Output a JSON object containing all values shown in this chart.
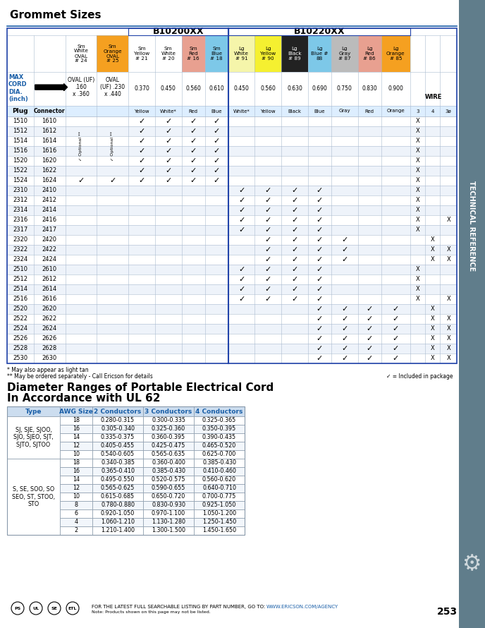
{
  "page_title": "Grommet Sizes",
  "b10200xx_label": "B10200XX",
  "b10220xx_label": "B10220XX",
  "col_header_texts": [
    "Sm\nWhite\nOVAL\n# 24",
    "Sm\nOrange\nOVAL\n# 25",
    "Sm\nYellow\n# 21",
    "Sm\nWhite\n# 20",
    "Sm\nRed\n# 16",
    "Sm\nBlue\n# 18",
    "Lg\nWhite\n# 91",
    "Lg\nYellow\n# 90",
    "Lg\nBlack\n# 89",
    "Lg\nBlue #\n88",
    "Lg\nGray\n# 87",
    "Lg\nRed\n# 86",
    "Lg\nOrange\n# 85"
  ],
  "col_header_colors": [
    "#ffffff",
    "#f5a020",
    "#ffffff",
    "#ffffff",
    "#e8a090",
    "#7dc8e8",
    "#f5f5aa",
    "#f5f030",
    "#222222",
    "#7dc8e8",
    "#bbbbbb",
    "#e8a090",
    "#f5a020"
  ],
  "col_header_fc": [
    "black",
    "black",
    "black",
    "black",
    "black",
    "black",
    "black",
    "black",
    "white",
    "black",
    "black",
    "black",
    "black"
  ],
  "sublabels": [
    "Yellow",
    "White*",
    "Red",
    "Blue",
    "White*",
    "Yellow",
    "Black",
    "Blue",
    "Gray",
    "Red",
    "Orange",
    "3",
    "4",
    "3ø"
  ],
  "plug_connector_pairs": [
    [
      "1510",
      "1610"
    ],
    [
      "1512",
      "1612"
    ],
    [
      "1514",
      "1614"
    ],
    [
      "1516",
      "1616"
    ],
    [
      "1520",
      "1620"
    ],
    [
      "1522",
      "1622"
    ],
    [
      "1524",
      "1624"
    ],
    [
      "2310",
      "2410"
    ],
    [
      "2312",
      "2412"
    ],
    [
      "2314",
      "2414"
    ],
    [
      "2316",
      "2416"
    ],
    [
      "2317",
      "2417"
    ],
    [
      "2320",
      "2420"
    ],
    [
      "2322",
      "2422"
    ],
    [
      "2324",
      "2424"
    ],
    [
      "2510",
      "2610"
    ],
    [
      "2512",
      "2612"
    ],
    [
      "2514",
      "2614"
    ],
    [
      "2516",
      "2616"
    ],
    [
      "2520",
      "2620"
    ],
    [
      "2522",
      "2622"
    ],
    [
      "2524",
      "2624"
    ],
    [
      "2526",
      "2626"
    ],
    [
      "2528",
      "2628"
    ],
    [
      "2530",
      "2630"
    ]
  ],
  "checks": {
    "1510": {
      "grommet": [
        2,
        3,
        4,
        5
      ],
      "wire": [
        13
      ]
    },
    "1512": {
      "grommet": [
        2,
        3,
        4,
        5
      ],
      "wire": [
        13
      ]
    },
    "1514": {
      "grommet": [
        2,
        3,
        4,
        5
      ],
      "wire": [
        13
      ]
    },
    "1516": {
      "grommet": [
        2,
        3,
        4,
        5
      ],
      "wire": [
        13
      ]
    },
    "1520": {
      "grommet": [
        2,
        3,
        4,
        5
      ],
      "wire": [
        13
      ]
    },
    "1522": {
      "grommet": [
        2,
        3,
        4,
        5
      ],
      "wire": [
        13
      ]
    },
    "1524": {
      "grommet": [
        0,
        1,
        2,
        3,
        4,
        5
      ],
      "wire": [
        13
      ]
    },
    "2310": {
      "grommet": [
        6,
        7,
        8,
        9
      ],
      "wire": [
        13
      ]
    },
    "2312": {
      "grommet": [
        6,
        7,
        8,
        9
      ],
      "wire": [
        13
      ]
    },
    "2314": {
      "grommet": [
        6,
        7,
        8,
        9
      ],
      "wire": [
        13
      ]
    },
    "2316": {
      "grommet": [
        6,
        7,
        8,
        9
      ],
      "wire": [
        13,
        15
      ]
    },
    "2317": {
      "grommet": [
        6,
        7,
        8,
        9
      ],
      "wire": [
        13
      ]
    },
    "2320": {
      "grommet": [
        7,
        8,
        9,
        10
      ],
      "wire": [
        14
      ]
    },
    "2322": {
      "grommet": [
        7,
        8,
        9,
        10
      ],
      "wire": [
        14,
        15
      ]
    },
    "2324": {
      "grommet": [
        7,
        8,
        9,
        10
      ],
      "wire": [
        14,
        15
      ]
    },
    "2510": {
      "grommet": [
        6,
        7,
        8,
        9
      ],
      "wire": [
        13
      ]
    },
    "2512": {
      "grommet": [
        6,
        7,
        8,
        9
      ],
      "wire": [
        13
      ]
    },
    "2514": {
      "grommet": [
        6,
        7,
        8,
        9
      ],
      "wire": [
        13
      ]
    },
    "2516": {
      "grommet": [
        6,
        7,
        8,
        9
      ],
      "wire": [
        13,
        15
      ]
    },
    "2520": {
      "grommet": [
        9,
        10,
        11,
        12
      ],
      "wire": [
        14
      ]
    },
    "2522": {
      "grommet": [
        9,
        10,
        11,
        12
      ],
      "wire": [
        14,
        15
      ]
    },
    "2524": {
      "grommet": [
        9,
        10,
        11,
        12
      ],
      "wire": [
        14,
        15
      ]
    },
    "2526": {
      "grommet": [
        9,
        10,
        11,
        12
      ],
      "wire": [
        14,
        15
      ]
    },
    "2528": {
      "grommet": [
        9,
        10,
        11,
        12
      ],
      "wire": [
        14,
        15
      ]
    },
    "2530": {
      "grommet": [
        9,
        10,
        11,
        12
      ],
      "wire": [
        14,
        15
      ]
    }
  },
  "blue_color": "#1a5fa8",
  "side_bar_color": "#607d8b",
  "footnote1": "* May also appear as light tan",
  "footnote2": "** May be ordered separately - Call Ericson for details",
  "footnote3": "✓ = Included in package",
  "page_num": "253",
  "table2_type1": "SJ, SJE, SJOO,\nSJO, SJEO, SJT,\nSJTO, SJTOO",
  "table2_type2": "S, SE, SOO, SO\nSEO, ST, STOO,\nSTO",
  "table2_awg1": [
    18,
    16,
    14,
    12,
    10
  ],
  "table2_awg2": [
    18,
    16,
    14,
    12,
    10,
    8,
    6,
    4,
    2
  ],
  "table2_2cond1": [
    "0.280-0.315",
    "0.305-0.340",
    "0.335-0.375",
    "0.405-0.455",
    "0.540-0.605"
  ],
  "table2_3cond1": [
    "0.300-0.335",
    "0.325-0.360",
    "0.360-0.395",
    "0.425-0.475",
    "0.565-0.635"
  ],
  "table2_4cond1": [
    "0.325-0.365",
    "0.350-0.395",
    "0.390-0.435",
    "0.465-0.520",
    "0.625-0.700"
  ],
  "table2_2cond2": [
    "0.340-0.385",
    "0.365-0.410",
    "0.495-0.550",
    "0.565-0.625",
    "0.615-0.685",
    "0.780-0.880",
    "0.920-1.050",
    "1.060-1.210",
    "1.210-1.400"
  ],
  "table2_3cond2": [
    "0.360-0.400",
    "0.385-0.430",
    "0.520-0.575",
    "0.590-0.655",
    "0.650-0.720",
    "0.830-0.930",
    "0.970-1.100",
    "1.130-1.280",
    "1.300-1.500"
  ],
  "table2_4cond2": [
    "0.385-0.430",
    "0.410-0.460",
    "0.560-0.620",
    "0.640-0.710",
    "0.700-0.775",
    "0.925-1.050",
    "1.050-1.200",
    "1.250-1.450",
    "1.450-1.650"
  ]
}
